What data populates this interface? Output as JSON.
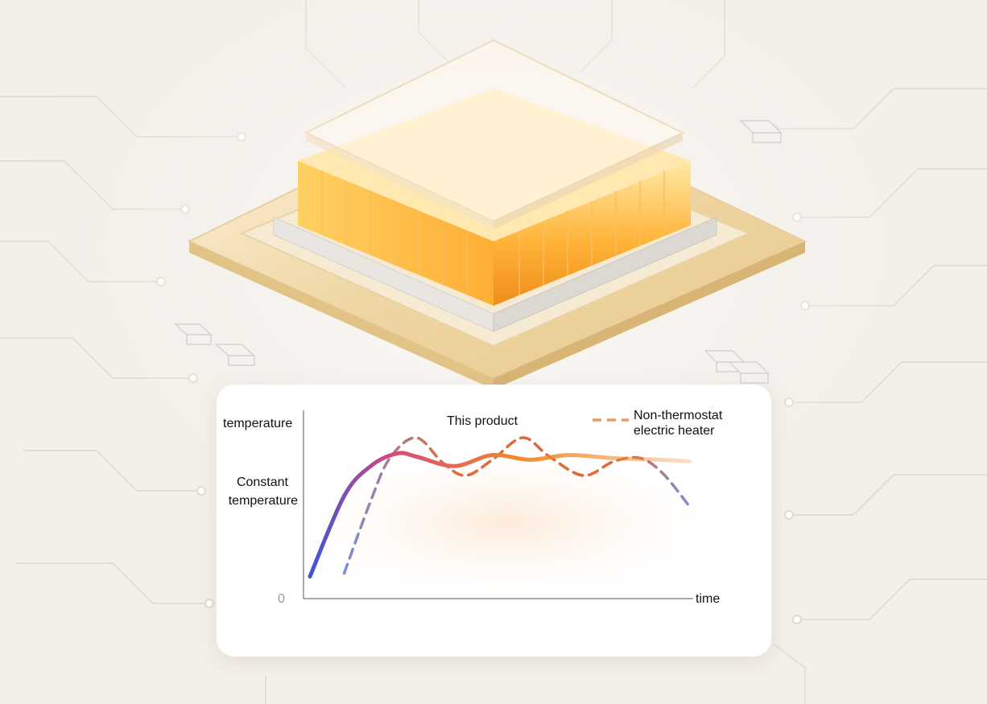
{
  "colors": {
    "background": "#f3efe9",
    "card": "#ffffff",
    "product_start": "#3d55d6",
    "product_mid": "#d94a7a",
    "product_end": "#f08a2a",
    "heater_dash_warm": "#e0693a",
    "heater_dash_cool": "#7a8fd6"
  },
  "illustration": {
    "subject": "heating-chip-icon"
  },
  "chart_data": {
    "type": "line",
    "title": "",
    "xlabel": "time",
    "ylabel": "temperature",
    "y_tick_labels": [
      "0",
      "Constant temperature"
    ],
    "axis_units": "unlabeled (qualitative)",
    "grid": false,
    "legend_position": "top",
    "legend": {
      "product": "This product",
      "heater_line1": "Non-thermostat",
      "heater_line2": "electric heater"
    },
    "series": [
      {
        "name": "This product",
        "style": "solid gradient",
        "x": [
          0,
          0.09,
          0.16,
          0.23,
          0.28,
          0.38,
          0.48,
          0.58,
          0.68,
          0.8,
          0.92,
          1.0
        ],
        "y": [
          0.12,
          0.63,
          0.82,
          0.9,
          0.88,
          0.82,
          0.89,
          0.86,
          0.89,
          0.87,
          0.86,
          0.85
        ]
      },
      {
        "name": "Non-thermostat electric heater",
        "style": "dashed",
        "x": [
          0.09,
          0.16,
          0.21,
          0.28,
          0.35,
          0.41,
          0.48,
          0.56,
          0.63,
          0.72,
          0.8,
          0.87,
          0.93,
          1.0
        ],
        "y": [
          0.14,
          0.6,
          0.87,
          1.0,
          0.84,
          0.76,
          0.86,
          1.0,
          0.88,
          0.76,
          0.85,
          0.87,
          0.77,
          0.56
        ]
      }
    ],
    "constant_level": 0.86
  }
}
